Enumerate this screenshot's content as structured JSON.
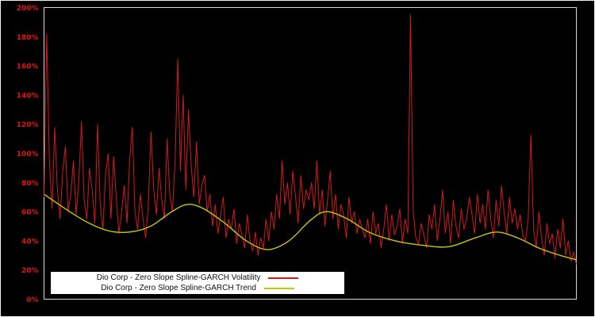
{
  "chart_data": {
    "type": "line",
    "title": "",
    "xlabel": "",
    "ylabel": "",
    "ylim": [
      0,
      200
    ],
    "ytick_values": [
      0,
      20,
      40,
      60,
      80,
      100,
      120,
      140,
      160,
      180,
      200
    ],
    "ytick_labels": [
      "0%",
      "20%",
      "40%",
      "60%",
      "80%",
      "100%",
      "120%",
      "140%",
      "160%",
      "180%",
      "200%"
    ],
    "x_axis_labels_visible": false,
    "grid": false,
    "background": "#000000",
    "axis_label_color": "#e01414",
    "plot_border_color": "#d9d9d9",
    "outer_border_color": "#ededed",
    "legend": {
      "position": "bottom-left",
      "background": "#ffffff",
      "text_color": "#111111"
    },
    "series": [
      {
        "name": "Dio Corp - Zero Slope Spline-GARCH Volatility",
        "color": "#d41a1a",
        "style": "noisy-line",
        "values": [
          70,
          182,
          95,
          62,
          118,
          75,
          55,
          88,
          105,
          60,
          72,
          95,
          58,
          80,
          122,
          68,
          55,
          90,
          75,
          52,
          120,
          65,
          48,
          85,
          100,
          55,
          98,
          70,
          45,
          60,
          78,
          52,
          95,
          118,
          60,
          48,
          72,
          55,
          42,
          65,
          115,
          75,
          58,
          90,
          68,
          55,
          110,
          72,
          60,
          95,
          165,
          88,
          140,
          75,
          130,
          92,
          70,
          108,
          65,
          78,
          85,
          60,
          72,
          50,
          65,
          45,
          58,
          70,
          42,
          55,
          48,
          62,
          38,
          52,
          44,
          35,
          58,
          40,
          33,
          46,
          30,
          42,
          35,
          55,
          40,
          60,
          48,
          72,
          55,
          95,
          65,
          80,
          58,
          88,
          70,
          52,
          85,
          62,
          75,
          68,
          80,
          62,
          95,
          58,
          75,
          50,
          68,
          88,
          55,
          72,
          48,
          65,
          58,
          42,
          70,
          52,
          60,
          45,
          55,
          48,
          42,
          55,
          38,
          60,
          45,
          52,
          35,
          48,
          65,
          40,
          58,
          44,
          50,
          62,
          38,
          55,
          45,
          195,
          60,
          42,
          38,
          52,
          44,
          35,
          58,
          48,
          65,
          40,
          55,
          75,
          45,
          60,
          38,
          68,
          50,
          42,
          62,
          48,
          55,
          70,
          58,
          45,
          72,
          52,
          65,
          48,
          75,
          55,
          42,
          68,
          50,
          78,
          60,
          45,
          70,
          52,
          62,
          48,
          58,
          44,
          40,
          55,
          113,
          48,
          35,
          60,
          42,
          30,
          52,
          38,
          45,
          28,
          48,
          35,
          55,
          30,
          40,
          26,
          32,
          24
        ]
      },
      {
        "name": "Dio Corp - Zero Slope Spline-GARCH Trend",
        "color": "#c8c800",
        "style": "smooth-line",
        "x": [
          0,
          0.04,
          0.08,
          0.12,
          0.16,
          0.2,
          0.24,
          0.27,
          0.3,
          0.34,
          0.38,
          0.42,
          0.46,
          0.5,
          0.53,
          0.57,
          0.61,
          0.66,
          0.71,
          0.76,
          0.81,
          0.85,
          0.89,
          0.93,
          0.97,
          1.0
        ],
        "values": [
          72,
          62,
          53,
          47,
          46,
          50,
          60,
          65,
          62,
          52,
          40,
          34,
          40,
          54,
          60,
          55,
          46,
          40,
          37,
          36,
          42,
          46,
          42,
          35,
          30,
          27
        ]
      }
    ]
  }
}
